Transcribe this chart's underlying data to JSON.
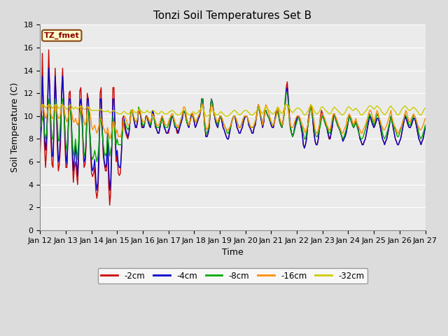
{
  "title": "Tonzi Soil Temperatures Set B",
  "xlabel": "Time",
  "ylabel": "Soil Temperature (C)",
  "ylim": [
    0,
    18
  ],
  "annotation": "TZ_fmet",
  "annotation_color": "#8B0000",
  "annotation_bg": "#FFFFCC",
  "annotation_border": "#8B4513",
  "tick_labels": [
    "Jan 12",
    "Jan 13",
    "Jan 14",
    "Jan 15",
    "Jan 16",
    "Jan 17",
    "Jan 18",
    "Jan 19",
    "Jan 20",
    "Jan 21",
    "Jan 22",
    "Jan 23",
    "Jan 24",
    "Jan 25",
    "Jan 26",
    "Jan 27"
  ],
  "tick_positions": [
    0,
    24,
    48,
    72,
    96,
    120,
    144,
    168,
    192,
    216,
    240,
    264,
    288,
    312,
    336,
    360
  ],
  "colors": {
    "2cm": "#CC0000",
    "4cm": "#0000CC",
    "8cm": "#00AA00",
    "16cm": "#FF8C00",
    "32cm": "#CCCC00"
  },
  "labels": {
    "2cm": "-2cm",
    "4cm": "-4cm",
    "8cm": "-8cm",
    "16cm": "-16cm",
    "32cm": "-32cm"
  },
  "background_color": "#DCDCDC",
  "plot_bg": "#EBEBEB",
  "grid_color": "#FFFFFF",
  "title_fontsize": 11,
  "axis_fontsize": 9,
  "tick_fontsize": 8,
  "series_2cm": [
    6.8,
    9.0,
    15.5,
    11.0,
    7.5,
    5.5,
    7.0,
    11.5,
    15.8,
    12.0,
    8.0,
    5.8,
    5.5,
    9.5,
    14.2,
    11.0,
    7.5,
    5.2,
    5.8,
    7.5,
    12.2,
    14.2,
    11.0,
    8.0,
    5.5,
    5.5,
    8.5,
    12.0,
    12.2,
    9.5,
    6.5,
    4.2,
    5.5,
    6.0,
    5.0,
    4.0,
    6.5,
    12.2,
    12.5,
    10.5,
    7.5,
    5.5,
    5.8,
    7.5,
    12.0,
    11.5,
    9.0,
    7.0,
    5.0,
    4.7,
    5.0,
    5.5,
    3.5,
    2.8,
    3.5,
    6.0,
    12.0,
    12.5,
    9.0,
    6.5,
    5.8,
    5.2,
    5.2,
    7.8,
    4.0,
    2.2,
    3.5,
    7.5,
    12.5,
    12.5,
    8.5,
    6.0,
    6.5,
    5.0,
    4.8,
    5.0,
    7.0,
    9.8,
    10.0,
    9.0,
    8.5,
    8.2,
    8.0,
    8.5,
    9.5,
    10.5,
    10.5,
    10.0,
    9.5,
    9.2,
    9.0,
    9.5,
    10.5,
    10.5,
    10.0,
    9.2,
    9.0,
    9.2,
    9.5,
    10.0,
    10.0,
    9.5,
    9.2,
    9.0,
    9.5,
    10.5,
    10.2,
    9.5,
    9.0,
    8.8,
    8.5,
    8.5,
    9.0,
    9.5,
    10.0,
    9.5,
    9.0,
    8.8,
    8.5,
    8.5,
    8.5,
    9.0,
    9.5,
    10.0,
    10.0,
    9.5,
    9.2,
    9.0,
    8.5,
    8.5,
    9.0,
    9.2,
    9.5,
    10.0,
    10.5,
    10.5,
    10.0,
    9.5,
    9.2,
    9.0,
    9.5,
    10.0,
    10.2,
    10.0,
    9.5,
    9.0,
    9.2,
    9.5,
    9.8,
    10.0,
    10.5,
    11.5,
    11.5,
    10.2,
    9.0,
    8.2,
    8.2,
    8.5,
    9.0,
    10.5,
    11.5,
    11.2,
    10.5,
    10.0,
    9.5,
    9.2,
    9.0,
    9.5,
    10.0,
    10.0,
    9.5,
    9.0,
    8.8,
    8.5,
    8.2,
    8.0,
    8.0,
    8.5,
    9.0,
    9.5,
    9.8,
    10.0,
    10.0,
    9.5,
    9.0,
    8.8,
    8.5,
    8.5,
    8.8,
    9.0,
    9.5,
    9.8,
    10.0,
    10.0,
    9.8,
    9.2,
    9.0,
    8.8,
    8.5,
    8.5,
    9.0,
    9.2,
    9.8,
    10.5,
    11.0,
    10.5,
    10.0,
    9.5,
    9.0,
    9.5,
    10.5,
    10.5,
    10.2,
    10.0,
    9.8,
    9.5,
    9.2,
    9.0,
    9.0,
    9.5,
    10.0,
    10.5,
    10.5,
    10.0,
    9.5,
    9.2,
    9.0,
    9.5,
    10.2,
    11.0,
    12.5,
    13.0,
    11.5,
    10.0,
    9.0,
    8.5,
    8.2,
    8.5,
    9.0,
    9.5,
    9.8,
    10.0,
    10.0,
    9.5,
    9.0,
    8.5,
    7.5,
    7.2,
    7.5,
    8.0,
    9.0,
    10.0,
    10.5,
    11.0,
    10.5,
    9.5,
    8.5,
    7.8,
    7.5,
    7.5,
    8.0,
    9.0,
    10.0,
    10.5,
    10.2,
    9.8,
    9.5,
    9.2,
    9.0,
    8.5,
    8.0,
    8.0,
    8.5,
    9.0,
    9.8,
    10.2,
    9.8,
    9.5,
    9.2,
    9.0,
    8.8,
    8.5,
    8.2,
    7.8,
    8.0,
    8.2,
    8.5,
    9.0,
    9.5,
    10.0,
    9.8,
    9.5,
    9.2,
    9.0,
    9.2,
    9.5,
    9.2,
    9.0,
    8.5,
    8.0,
    7.8,
    7.5,
    7.5,
    7.8,
    8.0,
    8.5,
    9.0,
    9.5,
    10.0,
    9.8,
    9.5,
    9.2,
    9.0,
    9.2,
    9.5,
    9.8,
    9.8,
    9.5,
    9.0,
    8.5,
    8.0,
    7.8,
    7.5,
    7.8,
    8.0,
    8.5,
    9.0,
    9.5,
    10.0,
    9.5,
    9.0,
    8.5,
    8.0,
    7.8,
    7.5,
    7.5,
    7.8,
    8.0,
    8.5,
    9.0,
    9.5,
    10.0,
    9.8,
    9.5,
    9.2,
    9.0,
    9.0,
    9.2,
    9.5,
    9.8,
    9.8,
    9.5,
    9.0,
    8.5,
    8.0,
    7.8,
    7.5,
    7.8,
    8.0,
    8.5,
    9.0
  ],
  "series_4cm": [
    7.8,
    9.0,
    13.5,
    11.0,
    8.5,
    7.0,
    8.0,
    11.0,
    14.2,
    12.5,
    9.0,
    6.5,
    6.5,
    9.5,
    13.5,
    11.5,
    8.5,
    6.0,
    6.5,
    8.5,
    11.5,
    13.5,
    11.5,
    9.0,
    6.5,
    5.8,
    8.0,
    11.5,
    11.5,
    10.0,
    7.5,
    5.2,
    6.2,
    7.5,
    6.0,
    4.8,
    7.0,
    11.0,
    11.5,
    10.5,
    8.0,
    6.0,
    6.2,
    8.0,
    11.5,
    11.5,
    9.5,
    7.5,
    5.8,
    5.2,
    5.5,
    6.2,
    4.5,
    3.5,
    4.2,
    7.5,
    11.5,
    11.5,
    9.0,
    7.0,
    6.0,
    5.5,
    5.8,
    8.5,
    5.5,
    3.5,
    4.5,
    7.5,
    11.5,
    11.5,
    9.0,
    6.5,
    7.0,
    5.8,
    5.5,
    5.5,
    6.8,
    9.0,
    10.0,
    9.5,
    8.8,
    8.5,
    8.2,
    8.5,
    9.5,
    10.5,
    10.5,
    10.0,
    9.5,
    9.0,
    9.0,
    9.5,
    10.5,
    10.5,
    10.0,
    9.0,
    9.0,
    9.0,
    9.5,
    10.0,
    10.0,
    9.5,
    9.2,
    9.0,
    9.5,
    10.5,
    10.2,
    9.5,
    9.0,
    8.8,
    8.5,
    8.5,
    9.0,
    9.5,
    10.0,
    9.5,
    9.0,
    8.8,
    8.5,
    8.5,
    8.8,
    9.0,
    9.5,
    10.0,
    10.0,
    9.5,
    9.0,
    9.0,
    8.8,
    8.5,
    8.8,
    9.2,
    9.5,
    9.8,
    10.5,
    10.5,
    10.0,
    9.5,
    9.2,
    9.0,
    9.5,
    10.0,
    10.0,
    10.0,
    9.5,
    9.0,
    9.2,
    9.5,
    9.8,
    10.0,
    10.5,
    11.5,
    11.5,
    10.2,
    9.0,
    8.2,
    8.2,
    8.5,
    9.0,
    10.5,
    11.5,
    11.2,
    10.5,
    10.0,
    9.5,
    9.2,
    9.0,
    9.5,
    10.0,
    10.0,
    9.5,
    9.0,
    8.8,
    8.5,
    8.2,
    8.0,
    8.0,
    8.5,
    9.0,
    9.5,
    9.8,
    10.0,
    10.0,
    9.5,
    9.0,
    8.8,
    8.5,
    8.5,
    8.8,
    9.0,
    9.5,
    9.8,
    10.0,
    10.0,
    9.8,
    9.2,
    9.0,
    8.8,
    8.5,
    8.5,
    9.0,
    9.2,
    9.8,
    10.5,
    11.0,
    10.5,
    10.0,
    9.5,
    9.0,
    9.5,
    10.5,
    10.5,
    10.2,
    10.0,
    9.8,
    9.5,
    9.2,
    9.0,
    9.0,
    9.5,
    10.0,
    10.5,
    10.5,
    10.0,
    9.5,
    9.2,
    9.0,
    9.5,
    10.2,
    11.0,
    12.2,
    12.5,
    11.5,
    10.0,
    9.0,
    8.5,
    8.2,
    8.5,
    9.0,
    9.5,
    9.8,
    10.0,
    10.0,
    9.5,
    9.0,
    8.5,
    7.5,
    7.2,
    7.5,
    8.0,
    9.0,
    10.0,
    10.5,
    11.0,
    10.5,
    9.5,
    8.5,
    7.8,
    7.5,
    7.5,
    8.0,
    8.8,
    9.5,
    10.2,
    10.2,
    9.8,
    9.5,
    9.2,
    9.0,
    8.5,
    8.2,
    8.0,
    8.5,
    9.0,
    9.8,
    10.2,
    9.8,
    9.5,
    9.2,
    9.0,
    8.8,
    8.5,
    8.2,
    7.8,
    8.0,
    8.2,
    8.5,
    9.0,
    9.5,
    10.0,
    9.8,
    9.5,
    9.2,
    9.0,
    9.2,
    9.5,
    9.2,
    9.0,
    8.5,
    8.0,
    7.8,
    7.5,
    7.5,
    7.8,
    8.0,
    8.5,
    9.0,
    9.5,
    10.0,
    9.8,
    9.5,
    9.2,
    9.0,
    9.2,
    9.5,
    9.8,
    9.8,
    9.5,
    9.0,
    8.5,
    8.0,
    7.8,
    7.5,
    7.8,
    8.0,
    8.5,
    9.0,
    9.5,
    10.0,
    9.5,
    9.0,
    8.5,
    8.0,
    7.8,
    7.5,
    7.5,
    7.8,
    8.0,
    8.5,
    9.0,
    9.5,
    10.0,
    9.8,
    9.5,
    9.2,
    9.0,
    9.0,
    9.2,
    9.5,
    9.8,
    9.8,
    9.5,
    9.0,
    8.5,
    8.0,
    7.8,
    7.5,
    7.8,
    8.0,
    8.5,
    9.0
  ],
  "series_8cm": [
    9.0,
    9.2,
    10.0,
    9.5,
    8.5,
    8.0,
    8.5,
    10.0,
    11.5,
    11.0,
    9.5,
    8.0,
    8.0,
    9.5,
    11.5,
    11.0,
    9.5,
    7.8,
    8.0,
    9.5,
    11.2,
    11.5,
    10.5,
    9.0,
    7.5,
    7.0,
    8.5,
    10.5,
    10.8,
    9.5,
    8.0,
    6.5,
    7.0,
    8.0,
    7.0,
    6.2,
    8.0,
    10.2,
    10.5,
    9.5,
    8.0,
    6.5,
    6.8,
    8.2,
    10.5,
    10.5,
    9.2,
    7.8,
    6.5,
    6.2,
    6.5,
    7.0,
    6.5,
    6.0,
    6.5,
    7.5,
    10.0,
    9.5,
    8.5,
    7.5,
    6.8,
    6.5,
    6.8,
    8.5,
    7.5,
    6.5,
    7.0,
    7.5,
    10.0,
    9.5,
    8.0,
    7.5,
    8.0,
    7.5,
    7.5,
    7.5,
    7.5,
    8.5,
    9.5,
    9.5,
    9.2,
    9.0,
    8.8,
    9.0,
    9.5,
    10.5,
    10.5,
    10.0,
    9.8,
    9.5,
    9.5,
    9.8,
    10.8,
    10.5,
    10.2,
    9.5,
    9.2,
    9.2,
    9.5,
    9.8,
    10.0,
    9.8,
    9.5,
    9.2,
    9.5,
    10.2,
    10.0,
    9.5,
    9.2,
    9.0,
    9.0,
    9.0,
    9.2,
    9.5,
    9.8,
    9.5,
    9.2,
    9.0,
    9.0,
    9.0,
    9.2,
    9.5,
    9.8,
    10.0,
    10.0,
    9.5,
    9.2,
    9.0,
    9.0,
    9.0,
    9.2,
    9.5,
    9.8,
    10.2,
    10.5,
    10.5,
    10.0,
    9.5,
    9.2,
    9.2,
    9.5,
    9.8,
    10.0,
    10.0,
    9.8,
    9.5,
    9.5,
    9.8,
    10.0,
    10.2,
    10.5,
    11.5,
    11.5,
    10.2,
    9.0,
    8.5,
    8.5,
    8.8,
    9.2,
    10.5,
    11.5,
    11.0,
    10.5,
    10.0,
    9.8,
    9.5,
    9.2,
    9.5,
    9.8,
    10.0,
    9.8,
    9.5,
    9.2,
    9.0,
    8.8,
    8.5,
    8.5,
    8.8,
    9.0,
    9.5,
    9.8,
    10.0,
    10.0,
    9.8,
    9.5,
    9.2,
    9.0,
    9.0,
    9.2,
    9.5,
    9.8,
    10.0,
    10.0,
    10.0,
    9.8,
    9.5,
    9.2,
    9.0,
    9.0,
    9.0,
    9.2,
    9.5,
    9.8,
    10.5,
    11.0,
    10.5,
    10.0,
    9.8,
    9.2,
    9.8,
    10.5,
    10.5,
    10.2,
    10.0,
    9.8,
    9.5,
    9.5,
    9.2,
    9.2,
    9.5,
    9.8,
    10.2,
    10.5,
    10.0,
    9.5,
    9.2,
    9.0,
    9.5,
    10.0,
    11.5,
    12.0,
    12.0,
    11.0,
    9.5,
    8.8,
    8.5,
    8.2,
    8.5,
    8.8,
    9.2,
    9.5,
    9.8,
    9.8,
    9.5,
    9.2,
    9.0,
    8.5,
    8.0,
    8.0,
    8.5,
    9.0,
    9.5,
    10.2,
    10.8,
    10.5,
    9.8,
    9.2,
    8.5,
    8.2,
    8.2,
    8.5,
    8.8,
    9.2,
    9.8,
    10.0,
    9.8,
    9.5,
    9.2,
    9.0,
    8.8,
    8.5,
    8.5,
    9.0,
    9.5,
    10.0,
    10.2,
    9.8,
    9.5,
    9.2,
    9.0,
    8.8,
    8.5,
    8.2,
    8.0,
    8.2,
    8.5,
    8.8,
    9.2,
    9.5,
    10.0,
    9.8,
    9.5,
    9.2,
    9.0,
    9.2,
    9.5,
    9.2,
    8.8,
    8.5,
    8.2,
    8.0,
    8.0,
    8.2,
    8.5,
    8.8,
    9.2,
    9.5,
    9.8,
    10.2,
    10.0,
    9.8,
    9.5,
    9.2,
    9.5,
    9.8,
    10.2,
    10.0,
    9.8,
    9.5,
    9.0,
    8.5,
    8.2,
    8.0,
    8.2,
    8.5,
    8.8,
    9.2,
    9.5,
    10.0,
    9.5,
    9.2,
    9.0,
    8.8,
    8.5,
    8.2,
    8.2,
    8.5,
    8.8,
    9.2,
    9.5,
    9.8,
    10.2,
    10.0,
    9.8,
    9.5,
    9.2,
    9.2,
    9.5,
    9.8,
    10.0,
    10.0,
    9.8,
    9.5,
    9.0,
    8.5,
    8.2,
    8.0,
    8.2,
    8.5,
    8.8,
    9.2
  ],
  "series_16cm": [
    10.2,
    10.5,
    11.0,
    10.8,
    10.2,
    9.8,
    10.0,
    10.5,
    11.0,
    10.8,
    10.2,
    9.8,
    9.8,
    10.5,
    11.0,
    10.8,
    10.2,
    9.8,
    9.8,
    10.2,
    10.8,
    11.0,
    10.8,
    10.2,
    9.8,
    9.5,
    9.8,
    10.5,
    10.8,
    10.5,
    10.0,
    9.5,
    9.5,
    9.8,
    9.5,
    9.2,
    9.5,
    10.2,
    10.8,
    10.5,
    10.0,
    9.5,
    9.2,
    9.5,
    10.5,
    10.8,
    10.5,
    10.0,
    9.2,
    8.8,
    9.0,
    9.2,
    8.8,
    8.5,
    8.8,
    9.2,
    9.8,
    9.8,
    9.5,
    9.0,
    8.8,
    8.5,
    8.5,
    9.0,
    8.5,
    8.0,
    8.2,
    8.8,
    9.5,
    9.5,
    9.0,
    8.5,
    8.8,
    8.2,
    8.2,
    8.2,
    8.5,
    9.0,
    9.8,
    10.0,
    9.8,
    9.5,
    9.2,
    9.2,
    9.5,
    10.2,
    10.5,
    10.2,
    9.8,
    9.5,
    9.5,
    9.8,
    10.5,
    10.5,
    10.2,
    9.8,
    9.5,
    9.5,
    9.5,
    9.8,
    10.0,
    9.8,
    9.5,
    9.5,
    9.8,
    10.2,
    10.0,
    9.8,
    9.5,
    9.2,
    9.2,
    9.2,
    9.5,
    9.8,
    10.0,
    9.8,
    9.5,
    9.2,
    9.2,
    9.2,
    9.5,
    9.8,
    10.0,
    10.2,
    10.2,
    9.8,
    9.5,
    9.2,
    9.2,
    9.0,
    9.2,
    9.5,
    9.8,
    10.2,
    10.8,
    10.8,
    10.5,
    9.8,
    9.5,
    9.2,
    9.5,
    9.8,
    10.0,
    10.2,
    9.8,
    9.5,
    9.5,
    9.8,
    10.0,
    10.2,
    10.5,
    11.0,
    11.0,
    10.2,
    9.5,
    9.0,
    8.8,
    9.0,
    9.5,
    10.5,
    11.0,
    10.8,
    10.5,
    10.2,
    9.8,
    9.5,
    9.5,
    9.8,
    10.0,
    10.0,
    9.8,
    9.5,
    9.2,
    9.0,
    8.8,
    8.8,
    8.8,
    9.0,
    9.2,
    9.5,
    9.8,
    10.0,
    10.0,
    9.8,
    9.5,
    9.2,
    9.0,
    9.0,
    9.2,
    9.5,
    9.8,
    10.0,
    10.0,
    10.0,
    9.8,
    9.5,
    9.2,
    9.0,
    9.0,
    9.0,
    9.2,
    9.5,
    9.8,
    10.5,
    11.0,
    10.8,
    10.2,
    9.8,
    9.2,
    9.8,
    10.5,
    11.0,
    10.8,
    10.5,
    10.2,
    9.8,
    9.5,
    9.2,
    9.2,
    9.5,
    9.8,
    10.2,
    10.8,
    10.5,
    9.8,
    9.5,
    9.2,
    9.5,
    10.2,
    11.0,
    11.0,
    11.0,
    10.5,
    9.8,
    9.2,
    9.0,
    9.0,
    9.2,
    9.5,
    9.8,
    10.0,
    10.0,
    10.0,
    9.8,
    9.5,
    9.2,
    9.0,
    8.8,
    8.5,
    8.8,
    9.2,
    9.8,
    10.5,
    11.0,
    10.8,
    10.2,
    9.5,
    8.8,
    8.5,
    8.5,
    8.8,
    9.2,
    9.8,
    10.2,
    10.2,
    10.0,
    9.8,
    9.5,
    9.2,
    9.0,
    8.8,
    8.8,
    9.2,
    9.8,
    10.2,
    10.2,
    10.0,
    9.8,
    9.5,
    9.2,
    9.0,
    8.8,
    8.5,
    8.5,
    8.8,
    9.0,
    9.2,
    9.8,
    10.0,
    10.2,
    10.0,
    9.8,
    9.5,
    9.2,
    9.5,
    9.8,
    9.5,
    9.2,
    9.0,
    8.8,
    8.5,
    8.5,
    8.8,
    9.0,
    9.2,
    9.5,
    9.8,
    10.2,
    10.5,
    10.5,
    10.2,
    9.8,
    9.5,
    9.8,
    10.2,
    10.5,
    10.2,
    9.8,
    9.5,
    9.2,
    9.0,
    8.8,
    8.8,
    9.0,
    9.2,
    9.5,
    9.8,
    10.2,
    10.5,
    9.8,
    9.5,
    9.2,
    9.0,
    8.8,
    8.5,
    8.5,
    8.8,
    9.0,
    9.2,
    9.5,
    9.8,
    10.2,
    10.5,
    10.2,
    9.8,
    9.5,
    9.5,
    9.8,
    10.0,
    10.2,
    10.0,
    9.8,
    9.5,
    9.2,
    9.0,
    8.8,
    8.8,
    9.0,
    9.2,
    9.5,
    9.8
  ],
  "series_32cm": [
    10.8,
    10.9,
    11.0,
    11.0,
    10.9,
    10.7,
    10.8,
    10.9,
    11.0,
    11.0,
    10.9,
    10.7,
    10.7,
    10.9,
    11.0,
    11.0,
    10.9,
    10.7,
    10.7,
    10.8,
    11.0,
    11.0,
    10.9,
    10.8,
    10.7,
    10.6,
    10.7,
    10.9,
    11.0,
    10.9,
    10.8,
    10.6,
    10.7,
    10.8,
    10.7,
    10.6,
    10.7,
    10.8,
    10.9,
    10.8,
    10.7,
    10.6,
    10.6,
    10.7,
    10.8,
    10.8,
    10.7,
    10.6,
    10.5,
    10.5,
    10.5,
    10.5,
    10.5,
    10.5,
    10.5,
    10.5,
    10.6,
    10.6,
    10.5,
    10.4,
    10.4,
    10.4,
    10.4,
    10.5,
    10.4,
    10.3,
    10.3,
    10.4,
    10.5,
    10.5,
    10.4,
    10.3,
    10.3,
    10.2,
    10.2,
    10.2,
    10.2,
    10.3,
    10.4,
    10.4,
    10.3,
    10.2,
    10.2,
    10.2,
    10.3,
    10.5,
    10.6,
    10.5,
    10.4,
    10.3,
    10.3,
    10.4,
    10.6,
    10.6,
    10.5,
    10.4,
    10.3,
    10.3,
    10.3,
    10.4,
    10.5,
    10.4,
    10.3,
    10.3,
    10.4,
    10.5,
    10.5,
    10.4,
    10.3,
    10.2,
    10.2,
    10.2,
    10.3,
    10.4,
    10.4,
    10.3,
    10.2,
    10.2,
    10.2,
    10.2,
    10.3,
    10.4,
    10.4,
    10.5,
    10.5,
    10.4,
    10.3,
    10.2,
    10.1,
    10.1,
    10.1,
    10.2,
    10.3,
    10.4,
    10.5,
    10.5,
    10.4,
    10.3,
    10.2,
    10.1,
    10.1,
    10.2,
    10.3,
    10.4,
    10.3,
    10.2,
    10.2,
    10.3,
    10.4,
    10.5,
    10.6,
    10.8,
    10.8,
    10.5,
    10.2,
    10.0,
    10.0,
    10.0,
    10.1,
    10.3,
    10.5,
    10.5,
    10.4,
    10.3,
    10.2,
    10.1,
    10.1,
    10.2,
    10.3,
    10.4,
    10.3,
    10.2,
    10.1,
    10.0,
    10.0,
    10.0,
    10.0,
    10.1,
    10.2,
    10.3,
    10.4,
    10.5,
    10.5,
    10.4,
    10.3,
    10.2,
    10.1,
    10.1,
    10.2,
    10.3,
    10.4,
    10.5,
    10.5,
    10.5,
    10.4,
    10.3,
    10.2,
    10.1,
    10.1,
    10.1,
    10.2,
    10.3,
    10.4,
    10.6,
    10.7,
    10.7,
    10.5,
    10.3,
    10.2,
    10.4,
    10.7,
    10.8,
    10.7,
    10.6,
    10.5,
    10.4,
    10.3,
    10.2,
    10.2,
    10.3,
    10.4,
    10.6,
    10.8,
    10.7,
    10.5,
    10.3,
    10.2,
    10.4,
    10.6,
    10.9,
    11.0,
    11.0,
    10.9,
    10.7,
    10.5,
    10.4,
    10.3,
    10.4,
    10.5,
    10.6,
    10.7,
    10.7,
    10.7,
    10.6,
    10.5,
    10.4,
    10.2,
    10.1,
    10.1,
    10.2,
    10.4,
    10.6,
    10.8,
    11.0,
    10.9,
    10.7,
    10.5,
    10.3,
    10.2,
    10.2,
    10.3,
    10.4,
    10.6,
    10.8,
    10.8,
    10.7,
    10.6,
    10.5,
    10.4,
    10.3,
    10.2,
    10.2,
    10.3,
    10.5,
    10.7,
    10.8,
    10.7,
    10.6,
    10.5,
    10.4,
    10.3,
    10.2,
    10.1,
    10.1,
    10.2,
    10.3,
    10.5,
    10.7,
    10.8,
    10.8,
    10.7,
    10.6,
    10.5,
    10.5,
    10.6,
    10.7,
    10.6,
    10.5,
    10.4,
    10.2,
    10.1,
    10.1,
    10.2,
    10.3,
    10.4,
    10.5,
    10.7,
    10.8,
    10.9,
    10.9,
    10.8,
    10.7,
    10.6,
    10.7,
    10.8,
    10.9,
    10.8,
    10.7,
    10.6,
    10.4,
    10.3,
    10.2,
    10.1,
    10.2,
    10.3,
    10.5,
    10.7,
    10.8,
    10.9,
    10.7,
    10.6,
    10.5,
    10.4,
    10.2,
    10.1,
    10.1,
    10.2,
    10.4,
    10.6,
    10.7,
    10.8,
    10.9,
    10.8,
    10.7,
    10.6,
    10.5,
    10.5,
    10.6,
    10.7,
    10.8,
    10.7,
    10.6,
    10.5,
    10.4,
    10.2,
    10.1,
    10.1,
    10.2,
    10.4,
    10.6,
    10.7
  ]
}
